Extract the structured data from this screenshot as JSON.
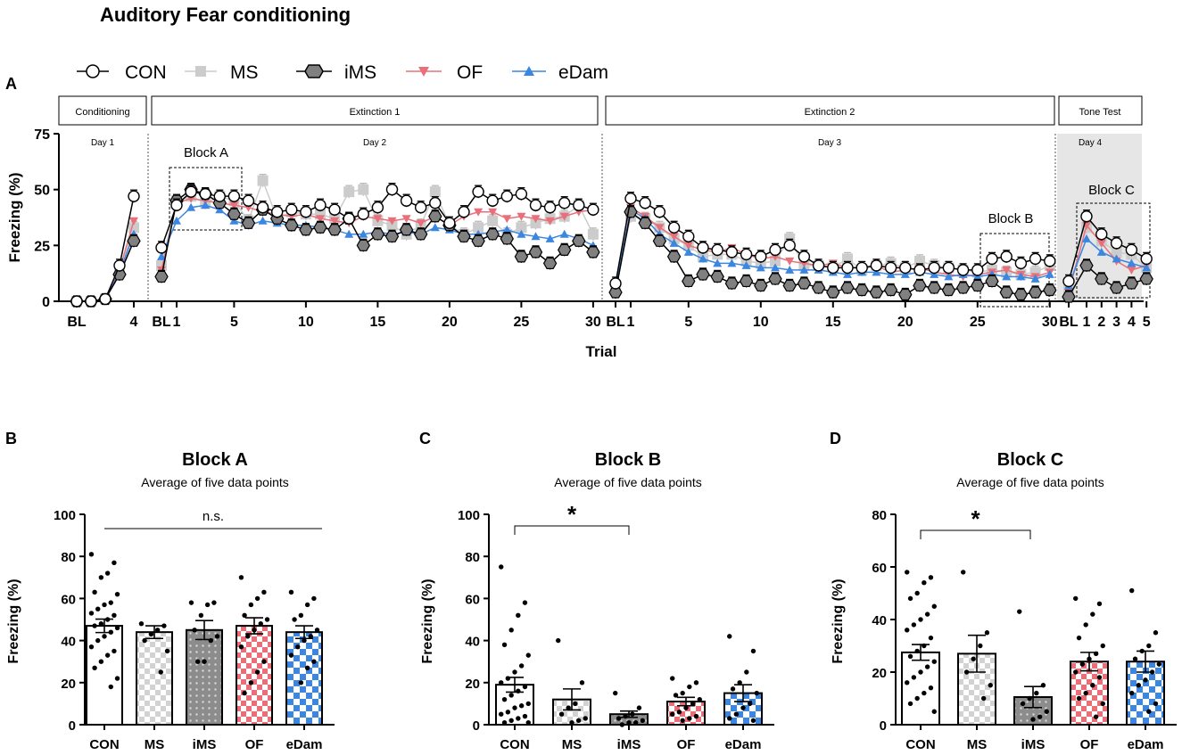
{
  "title": "Auditory Fear conditioning",
  "panel_letters": {
    "a": "A",
    "b": "B",
    "c": "C",
    "d": "D"
  },
  "colors": {
    "CON": "#ffffff",
    "MS": "#cccccc",
    "iMS": "#808080",
    "OF": "#e8707a",
    "eDam": "#3a86e0",
    "shade": "#e6e6e6"
  },
  "chart_data": [
    {
      "type": "line",
      "panel": "A",
      "ylabel": "Freezing (%)",
      "xlabel": "Trial",
      "ylim": [
        0,
        75
      ],
      "yticks": [
        "0",
        "25",
        "50",
        "75"
      ],
      "legend": [
        "CON",
        "MS",
        "iMS",
        "OF",
        "eDam"
      ],
      "phase_boxes": [
        "Conditioning",
        "Extinction 1",
        "Extinction 2",
        "Tone Test"
      ],
      "day_labels": [
        "Day 1",
        "Day 2",
        "Day 3",
        "Day 4"
      ],
      "block_labels": [
        "Block A",
        "Block B",
        "Block C"
      ],
      "segments": [
        {
          "name": "Day 1",
          "x_ticks": [
            "BL",
            "4"
          ],
          "x": [
            0,
            1,
            2,
            3,
            4
          ],
          "series": {
            "CON": [
              0,
              0,
              1,
              16,
              47
            ],
            "MS": [
              0,
              0,
              1,
              13,
              33
            ],
            "iMS": [
              0,
              0,
              1,
              12,
              27
            ],
            "OF": [
              0,
              0,
              1,
              14,
              36
            ],
            "eDam": [
              0,
              0,
              1,
              13,
              30
            ]
          }
        },
        {
          "name": "Day 2",
          "x_ticks": [
            "BL",
            "1",
            "5",
            "10",
            "15",
            "20",
            "25",
            "30"
          ],
          "x": [
            0,
            1,
            2,
            3,
            4,
            5,
            6,
            7,
            8,
            9,
            10,
            11,
            12,
            13,
            14,
            15,
            16,
            17,
            18,
            19,
            20,
            21,
            22,
            23,
            24,
            25,
            26,
            27,
            28,
            29,
            30
          ],
          "series": {
            "CON": [
              24,
              43,
              49,
              48,
              47,
              47,
              45,
              42,
              40,
              41,
              40,
              43,
              41,
              37,
              39,
              42,
              50,
              45,
              42,
              44,
              35,
              40,
              49,
              45,
              47,
              48,
              43,
              42,
              44,
              43,
              41
            ],
            "MS": [
              16,
              45,
              47,
              44,
              47,
              45,
              36,
              54,
              37,
              40,
              39,
              39,
              37,
              49,
              50,
              36,
              34,
              30,
              34,
              49,
              34,
              30,
              33,
              36,
              30,
              33,
              35,
              37,
              38,
              43,
              30
            ],
            "iMS": [
              11,
              45,
              50,
              48,
              44,
              39,
              35,
              41,
              37,
              34,
              32,
              33,
              32,
              37,
              25,
              30,
              29,
              32,
              30,
              38,
              34,
              29,
              27,
              30,
              28,
              20,
              22,
              17,
              23,
              27,
              22
            ],
            "OF": [
              14,
              44,
              46,
              45,
              44,
              43,
              42,
              40,
              39,
              38,
              39,
              37,
              36,
              35,
              38,
              37,
              36,
              37,
              35,
              38,
              34,
              38,
              40,
              40,
              37,
              38,
              37,
              36,
              38,
              40,
              41
            ],
            "eDam": [
              20,
              36,
              42,
              43,
              41,
              36,
              34,
              36,
              35,
              34,
              34,
              33,
              32,
              30,
              30,
              31,
              30,
              31,
              30,
              33,
              32,
              30,
              30,
              31,
              32,
              30,
              29,
              28,
              30,
              28,
              25
            ]
          }
        },
        {
          "name": "Day 3",
          "x_ticks": [
            "BL",
            "1",
            "5",
            "10",
            "15",
            "20",
            "25",
            "30"
          ],
          "x": [
            0,
            1,
            2,
            3,
            4,
            5,
            6,
            7,
            8,
            9,
            10,
            11,
            12,
            13,
            14,
            15,
            16,
            17,
            18,
            19,
            20,
            21,
            22,
            23,
            24,
            25,
            26,
            27,
            28,
            29,
            30
          ],
          "series": {
            "CON": [
              8,
              46,
              44,
              40,
              33,
              29,
              24,
              23,
              22,
              21,
              20,
              23,
              25,
              20,
              16,
              15,
              15,
              15,
              16,
              15,
              15,
              14,
              15,
              15,
              14,
              14,
              19,
              20,
              17,
              19,
              18
            ],
            "MS": [
              6,
              38,
              37,
              33,
              28,
              25,
              20,
              21,
              21,
              18,
              17,
              18,
              28,
              16,
              16,
              15,
              19,
              14,
              16,
              17,
              15,
              18,
              16,
              15,
              14,
              13,
              14,
              13,
              12,
              13,
              16
            ],
            "iMS": [
              4,
              40,
              35,
              27,
              20,
              9,
              12,
              11,
              8,
              9,
              7,
              10,
              7,
              8,
              6,
              4,
              6,
              5,
              4,
              5,
              3,
              7,
              6,
              5,
              6,
              7,
              9,
              4,
              3,
              4,
              5
            ],
            "OF": [
              5,
              42,
              38,
              33,
              29,
              25,
              23,
              22,
              24,
              21,
              19,
              20,
              18,
              17,
              16,
              17,
              15,
              15,
              16,
              13,
              14,
              15,
              13,
              12,
              11,
              12,
              13,
              14,
              12,
              11,
              13
            ],
            "eDam": [
              6,
              41,
              37,
              30,
              26,
              22,
              19,
              17,
              17,
              16,
              15,
              15,
              14,
              14,
              14,
              13,
              12,
              13,
              13,
              12,
              12,
              13,
              12,
              11,
              12,
              11,
              12,
              11,
              11,
              10,
              12
            ]
          }
        },
        {
          "name": "Day 4",
          "x_ticks": [
            "BL",
            "1",
            "2",
            "3",
            "4",
            "5"
          ],
          "x": [
            0,
            1,
            2,
            3,
            4,
            5
          ],
          "series": {
            "CON": [
              9,
              38,
              30,
              26,
              23,
              19
            ],
            "MS": [
              5,
              33,
              27,
              22,
              21,
              15
            ],
            "iMS": [
              2,
              16,
              10,
              6,
              8,
              10
            ],
            "OF": [
              4,
              34,
              26,
              18,
              14,
              16
            ],
            "eDam": [
              7,
              28,
              22,
              19,
              17,
              15
            ]
          }
        }
      ]
    },
    {
      "type": "bar",
      "panel": "B",
      "title": "Block A",
      "subtitle": "Average of  five data points",
      "ylabel": "Freezing (%)",
      "categories": [
        "CON",
        "MS",
        "iMS",
        "OF",
        "eDam"
      ],
      "values": [
        47,
        44,
        45,
        47,
        44
      ],
      "sem": [
        3.2,
        3,
        4.5,
        3.8,
        3
      ],
      "ylim": [
        0,
        100
      ],
      "yticks": [
        "0",
        "20",
        "40",
        "60",
        "80",
        "100"
      ],
      "significance": "n.s.",
      "points": [
        [
          81,
          77,
          72,
          70,
          63,
          62,
          58,
          57,
          55,
          53,
          52,
          50,
          48,
          47,
          46,
          44,
          42,
          40,
          37,
          35,
          33,
          30,
          27,
          22,
          18
        ],
        [
          48,
          47,
          45,
          43,
          40,
          35,
          25
        ],
        [
          58,
          58,
          57,
          52,
          45,
          42,
          40,
          30,
          30
        ],
        [
          70,
          63,
          60,
          57,
          52,
          50,
          48,
          45,
          42,
          37,
          30,
          25,
          20,
          15
        ],
        [
          63,
          60,
          57,
          52,
          50,
          45,
          42,
          40,
          37,
          33,
          30,
          27,
          20
        ]
      ]
    },
    {
      "type": "bar",
      "panel": "C",
      "title": "Block B",
      "subtitle": "Average of  five data points",
      "ylabel": "Freezing (%)",
      "categories": [
        "CON",
        "MS",
        "iMS",
        "OF",
        "eDam"
      ],
      "values": [
        19,
        12,
        5,
        11,
        15
      ],
      "sem": [
        3.5,
        5,
        1.5,
        2,
        4
      ],
      "ylim": [
        0,
        100
      ],
      "yticks": [
        "0",
        "20",
        "40",
        "60",
        "80",
        "100"
      ],
      "significance": "*",
      "points": [
        [
          75,
          58,
          52,
          45,
          38,
          33,
          28,
          25,
          22,
          20,
          18,
          16,
          14,
          12,
          10,
          9,
          8,
          6,
          5,
          4,
          3,
          2,
          1,
          1
        ],
        [
          40,
          20,
          10,
          8,
          5,
          3,
          2,
          1
        ],
        [
          15,
          8,
          5,
          4,
          3,
          2,
          1,
          1,
          0
        ],
        [
          22,
          20,
          18,
          15,
          14,
          12,
          10,
          8,
          6,
          5,
          4,
          3,
          2
        ],
        [
          42,
          35,
          25,
          20,
          17,
          15,
          10,
          8,
          5,
          3,
          2
        ]
      ]
    },
    {
      "type": "bar",
      "panel": "D",
      "title": "Block C",
      "subtitle": "Average of  five data points",
      "ylabel": "Freezing (%)",
      "categories": [
        "CON",
        "MS",
        "iMS",
        "OF",
        "eDam"
      ],
      "values": [
        27.5,
        27,
        10.5,
        24,
        24
      ],
      "sem": [
        3,
        7,
        4,
        3.5,
        4
      ],
      "ylim": [
        0,
        80
      ],
      "yticks": [
        "0",
        "20",
        "40",
        "60",
        "80"
      ],
      "significance": "*",
      "points": [
        [
          58,
          56,
          54,
          50,
          48,
          45,
          42,
          40,
          38,
          36,
          33,
          30,
          28,
          26,
          24,
          22,
          20,
          18,
          16,
          14,
          12,
          10,
          8,
          5
        ],
        [
          58,
          35,
          30,
          25,
          20,
          15,
          10
        ],
        [
          43,
          15,
          12,
          10,
          8,
          5,
          3,
          2
        ],
        [
          48,
          46,
          42,
          38,
          33,
          30,
          27,
          25,
          23,
          20,
          18,
          15,
          12,
          10,
          8,
          3
        ],
        [
          51,
          35,
          30,
          28,
          25,
          23,
          20,
          17,
          15,
          12,
          8,
          5
        ]
      ]
    }
  ]
}
